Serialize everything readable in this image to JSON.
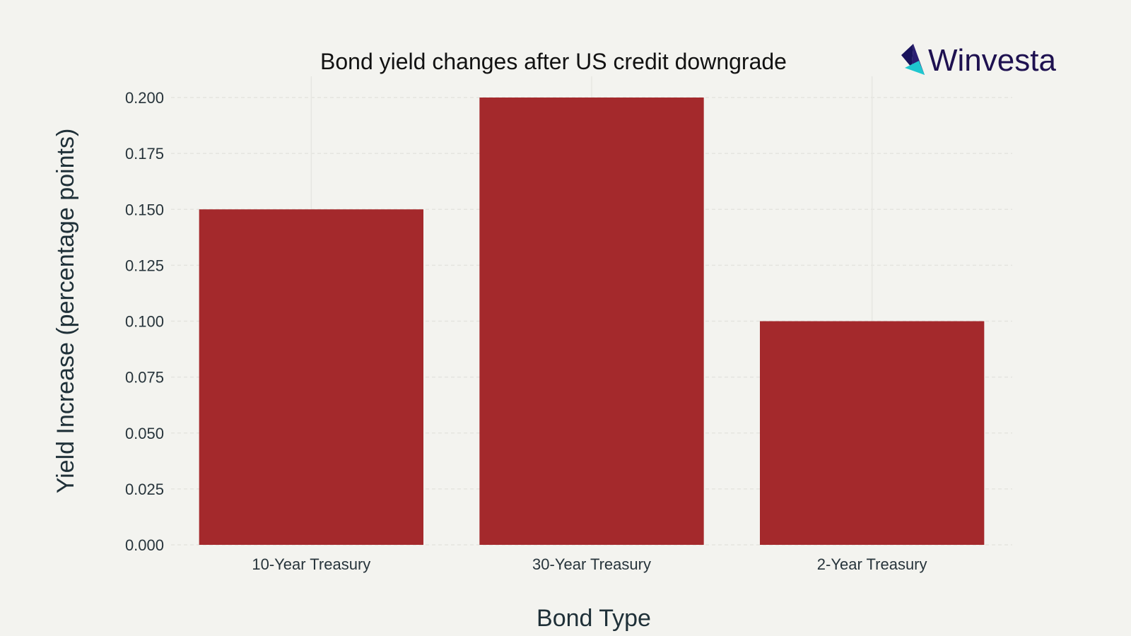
{
  "brand": {
    "name": "Winvesta",
    "logo_icon": "origami-bird-icon",
    "colors": {
      "primary": "#1e1150",
      "accent_teal": "#1fc7cf",
      "accent_navy": "#19135c"
    }
  },
  "chart_data": {
    "type": "bar",
    "title": "Bond yield changes after US credit downgrade",
    "xlabel": "Bond Type",
    "ylabel": "Yield Increase (percentage points)",
    "categories": [
      "10-Year Treasury",
      "30-Year Treasury",
      "2-Year Treasury"
    ],
    "values": [
      0.15,
      0.2,
      0.1
    ],
    "ylim": [
      0,
      0.2
    ],
    "yticks": [
      0,
      0.025,
      0.05,
      0.075,
      0.1,
      0.125,
      0.15,
      0.175,
      0.2
    ],
    "ytick_labels": [
      "0.000",
      "0.025",
      "0.050",
      "0.075",
      "0.100",
      "0.125",
      "0.150",
      "0.175",
      "0.200"
    ],
    "bar_color": "#a4292c",
    "plot_background": "#f3f3ef",
    "grid": true,
    "legend": "none"
  }
}
